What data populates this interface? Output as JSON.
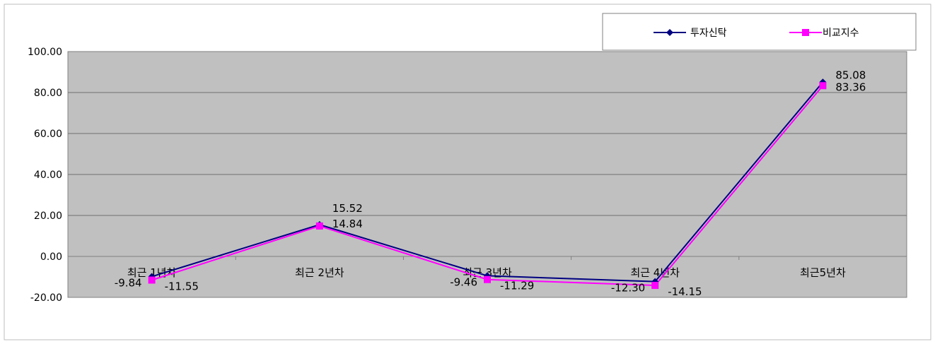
{
  "chart_data": {
    "type": "line",
    "categories": [
      "최근 1년차",
      "최근 2년차",
      "최근 3년차",
      "최근 4년차",
      "최근5년차"
    ],
    "series": [
      {
        "name": "투자신탁",
        "values": [
          -9.84,
          15.52,
          -9.46,
          -12.3,
          85.08
        ],
        "labels": [
          "-9.84",
          "15.52",
          "-9.46",
          "-12.30",
          "85.08"
        ],
        "color": "#000080",
        "marker": "diamond"
      },
      {
        "name": "비교지수",
        "values": [
          -11.55,
          14.84,
          -11.29,
          -14.15,
          83.36
        ],
        "labels": [
          "-11.55",
          "14.84",
          "-11.29",
          "-14.15",
          "83.36"
        ],
        "color": "#ff00ff",
        "marker": "square"
      }
    ],
    "y_ticks": [
      "100.00",
      "80.00",
      "60.00",
      "40.00",
      "20.00",
      "0.00",
      "-20.00"
    ],
    "ylim": [
      -20,
      100
    ],
    "grid": true,
    "legend_position": "top-right",
    "plot_background": "#c0c0c0"
  }
}
